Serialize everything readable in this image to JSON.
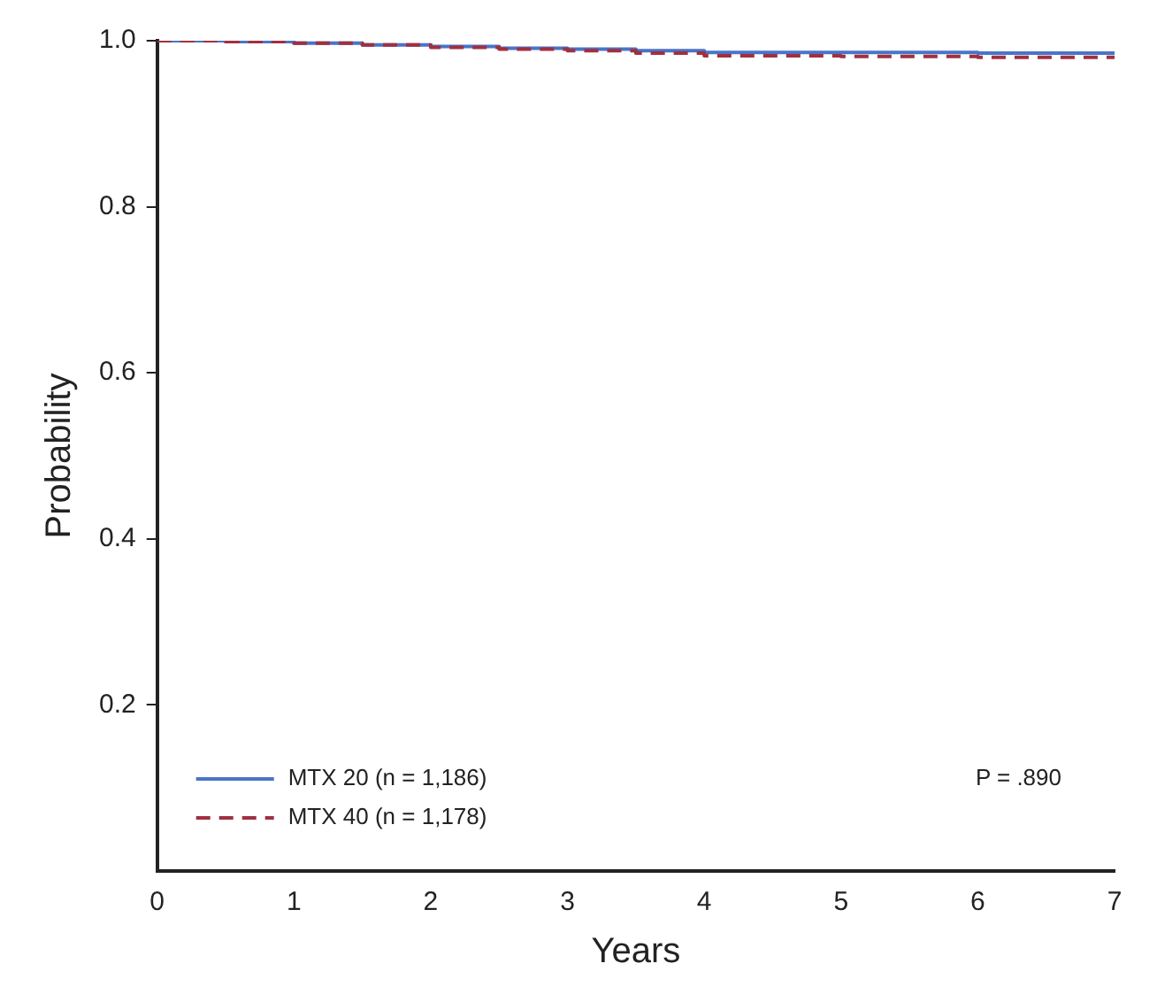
{
  "chart_data": {
    "type": "step",
    "xlabel": "Years",
    "ylabel": "Probability",
    "x": [
      0,
      0.5,
      1,
      1.5,
      2,
      2.5,
      3,
      3.5,
      4,
      5,
      6,
      7
    ],
    "series": [
      {
        "name": "MTX 20 (n = 1,186)",
        "color": "#4a74c8",
        "line_style": "solid",
        "values": [
          1,
          0.999,
          0.997,
          0.995,
          0.993,
          0.991,
          0.99,
          0.988,
          0.986,
          0.986,
          0.985,
          0.985
        ]
      },
      {
        "name": "MTX 40 (n = 1,178)",
        "color": "#a03040",
        "line_style": "dashed",
        "values": [
          1,
          0.999,
          0.997,
          0.995,
          0.992,
          0.99,
          0.988,
          0.985,
          0.982,
          0.981,
          0.98,
          0.98
        ]
      }
    ],
    "xlim": [
      0,
      7
    ],
    "xticks": [
      0,
      1,
      2,
      3,
      4,
      5,
      6,
      7
    ],
    "ylim": [
      0,
      1
    ],
    "yticks": [
      {
        "value": 0.2,
        "label": "0.2"
      },
      {
        "value": 0.4,
        "label": "0.4"
      },
      {
        "value": 0.6,
        "label": "0.6"
      },
      {
        "value": 0.8,
        "label": "0.8"
      },
      {
        "value": 1,
        "label": "1.0"
      }
    ],
    "grid": false,
    "legend": "bottom left",
    "marker": "none",
    "annotations": [
      "P = .890"
    ]
  }
}
